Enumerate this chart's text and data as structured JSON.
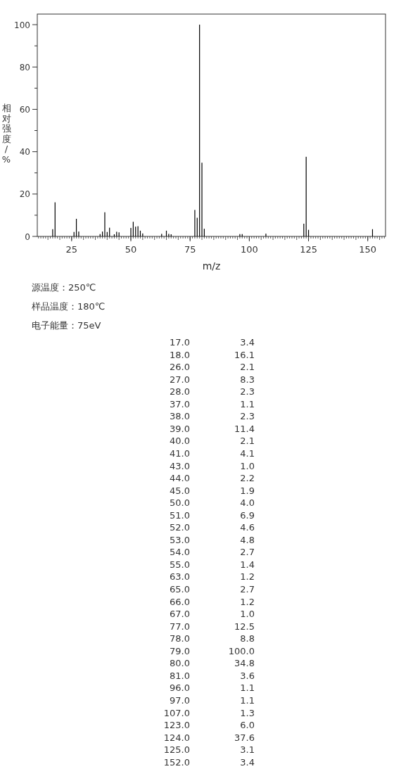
{
  "chart_data": [
    {
      "type": "bar",
      "xlabel": "m/z",
      "ylabel": "相对强度/%",
      "x": [
        17,
        18,
        26,
        27,
        28,
        37,
        38,
        39,
        40,
        41,
        43,
        44,
        45,
        50,
        51,
        52,
        53,
        54,
        55,
        63,
        65,
        66,
        67,
        77,
        78,
        79,
        80,
        81,
        96,
        97,
        107,
        123,
        124,
        125,
        152
      ],
      "values": [
        3.4,
        16.1,
        2.1,
        8.3,
        2.3,
        1.1,
        2.3,
        11.4,
        2.1,
        4.1,
        1.0,
        2.2,
        1.9,
        4.0,
        6.9,
        4.6,
        4.8,
        2.7,
        1.4,
        1.2,
        2.7,
        1.2,
        1.0,
        12.5,
        8.8,
        100.0,
        34.8,
        3.6,
        1.1,
        1.1,
        1.3,
        6.0,
        37.6,
        3.1,
        3.4
      ],
      "color": "#000000",
      "xlim": [
        10.5,
        157.5
      ],
      "ylim": [
        0,
        105
      ],
      "xticks": [
        25,
        50,
        75,
        100,
        125,
        150
      ],
      "yticks": [
        0,
        {
          "value": 10,
          "label": null
        },
        20,
        {
          "value": 30,
          "label": null
        },
        40,
        {
          "value": 50,
          "label": null
        },
        60,
        {
          "value": 70,
          "label": null
        },
        80,
        {
          "value": 90,
          "label": null
        },
        100
      ],
      "annotations": [
        "源温度：250℃",
        "样品温度：180℃",
        "电子能量：75eV"
      ]
    },
    {
      "type": "other",
      "annotations": [
        "17.0",
        "3.4",
        "18.0",
        "16.1",
        "26.0",
        "2.1",
        "27.0",
        "8.3",
        "28.0",
        "2.3",
        "37.0",
        "1.1",
        "38.0",
        "2.3",
        "39.0",
        "11.4",
        "40.0",
        "2.1",
        "41.0",
        "4.1",
        "43.0",
        "1.0",
        "44.0",
        "2.2",
        "45.0",
        "1.9",
        "50.0",
        "4.0",
        "51.0",
        "6.9",
        "52.0",
        "4.6",
        "53.0",
        "4.8",
        "54.0",
        "2.7",
        "55.0",
        "1.4",
        "63.0",
        "1.2",
        "65.0",
        "2.7",
        "66.0",
        "1.2",
        "67.0",
        "1.0",
        "77.0",
        "12.5",
        "78.0",
        "8.8",
        "79.0",
        "100.0",
        "80.0",
        "34.8",
        "81.0",
        "3.6",
        "96.0",
        "1.1",
        "97.0",
        "1.1",
        "107.0",
        "1.3",
        "123.0",
        "6.0",
        "124.0",
        "37.6",
        "125.0",
        "3.1",
        "152.0",
        "3.4"
      ]
    }
  ]
}
